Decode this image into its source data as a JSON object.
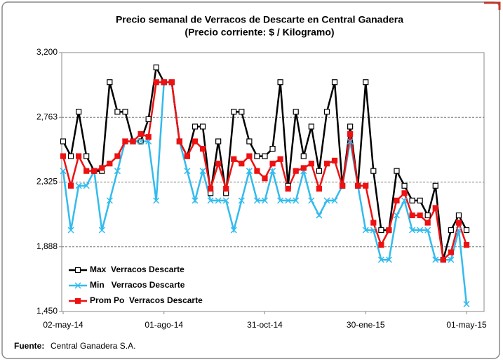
{
  "chart_data": {
    "type": "line",
    "title": "Precio semanal de Verracos de Descarte en Central Ganadera",
    "subtitle": "(Precio corriente: $ / Kilogramo)",
    "categories": [
      "02-may-14",
      null,
      null,
      null,
      null,
      null,
      null,
      null,
      null,
      null,
      null,
      null,
      null,
      "01-ago-14",
      null,
      null,
      null,
      null,
      null,
      null,
      null,
      null,
      null,
      null,
      null,
      null,
      "31-oct-14",
      null,
      null,
      null,
      null,
      null,
      null,
      null,
      null,
      null,
      null,
      null,
      null,
      "30-ene-15",
      null,
      null,
      null,
      null,
      null,
      null,
      null,
      null,
      null,
      null,
      null,
      null,
      "01-may-15"
    ],
    "series": [
      {
        "name": "Max  Verracos Descarte",
        "color": "#000000",
        "marker": "square-open",
        "values": [
          2600,
          2500,
          2800,
          2500,
          2400,
          2400,
          3000,
          2800,
          2800,
          2600,
          2600,
          2750,
          3100,
          3000,
          3000,
          2600,
          2500,
          2700,
          2700,
          2250,
          2600,
          2250,
          2800,
          2800,
          2600,
          2500,
          2500,
          2550,
          3000,
          2300,
          2800,
          2500,
          2700,
          2400,
          2800,
          3000,
          2300,
          2700,
          2300,
          3000,
          2400,
          2000,
          2000,
          2400,
          2300,
          2200,
          2200,
          2100,
          2300,
          1800,
          2000,
          2100,
          2000
        ]
      },
      {
        "name": "Min   Verracos Descarte",
        "color": "#33bbee",
        "marker": "x",
        "values": [
          2400,
          2000,
          2300,
          2300,
          2400,
          2000,
          2200,
          2400,
          2600,
          2600,
          2600,
          2600,
          2200,
          3000,
          3000,
          2600,
          2400,
          2200,
          2400,
          2200,
          2200,
          2200,
          2000,
          2200,
          2400,
          2200,
          2200,
          2400,
          2200,
          2200,
          2200,
          2400,
          2200,
          2100,
          2200,
          2200,
          2300,
          2600,
          2300,
          2000,
          2000,
          1800,
          1800,
          2100,
          2200,
          2000,
          2000,
          2000,
          1800,
          1800,
          1800,
          2000,
          1500
        ]
      },
      {
        "name": "Prom Po  Verracos Descarte",
        "color": "#ee1111",
        "marker": "square",
        "values": [
          2500,
          2300,
          2500,
          2400,
          2400,
          2420,
          2450,
          2500,
          2600,
          2600,
          2650,
          2630,
          3000,
          3000,
          3000,
          2600,
          2500,
          2600,
          2550,
          2280,
          2450,
          2280,
          2480,
          2450,
          2500,
          2400,
          2350,
          2450,
          2480,
          2280,
          2400,
          2420,
          2450,
          2280,
          2450,
          2470,
          2300,
          2650,
          2300,
          2300,
          2050,
          1900,
          2000,
          2200,
          2250,
          2100,
          2100,
          2050,
          2150,
          1800,
          1850,
          2050,
          1900
        ]
      }
    ],
    "ylim": [
      1450,
      3200
    ],
    "yticks": [
      {
        "value": 1450,
        "label": "1,450"
      },
      {
        "value": 1887.5,
        "label": "1,888"
      },
      {
        "value": 2325,
        "label": "2,325"
      },
      {
        "value": 2762.5,
        "label": "2,763"
      },
      {
        "value": 3200,
        "label": "3,200"
      }
    ],
    "grid": true,
    "legend": "lower-left",
    "source_label": "Fuente:",
    "source": "Central Ganadera S.A."
  }
}
